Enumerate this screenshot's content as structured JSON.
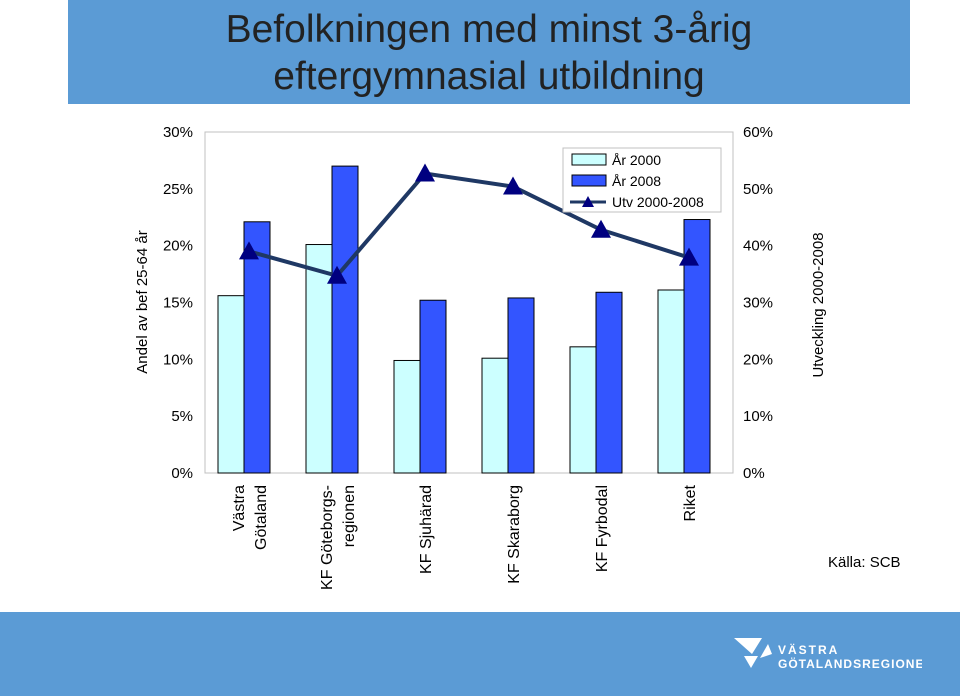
{
  "title_line1": "Befolkningen med minst 3-årig",
  "title_line2": "eftergymnasial utbildning",
  "source": "Källa: SCB",
  "logo": {
    "line1": "VÄSTRA",
    "line2": "GÖTALANDSREGIONEN"
  },
  "colors": {
    "banner": "#5b9bd5",
    "series_2000": "#ccffff",
    "series_2008": "#3355ff",
    "line": "#1f3864",
    "marker": "#000080"
  },
  "chart_data": {
    "type": "bar",
    "title": "Befolkningen med minst 3-årig eftergymnasial utbildning",
    "ylabel": "Andel av bef 25-64 år",
    "y2label": "Utveckling 2000-2008",
    "ylim": [
      0,
      30
    ],
    "y2lim": [
      0,
      60
    ],
    "y_ticks": [
      "0%",
      "5%",
      "10%",
      "15%",
      "20%",
      "25%",
      "30%"
    ],
    "y2_ticks": [
      "0%",
      "10%",
      "20%",
      "30%",
      "40%",
      "50%",
      "60%"
    ],
    "categories": [
      [
        "Västra",
        "Götaland"
      ],
      [
        "KF Göteborgs-",
        "regionen"
      ],
      [
        "KF Sjuhärad"
      ],
      [
        "KF Skaraborg"
      ],
      [
        "KF Fyrbodal"
      ],
      [
        "Riket"
      ]
    ],
    "legend_position": "top-right",
    "series": [
      {
        "name": "År 2000",
        "kind": "bar",
        "axis": "left",
        "values": [
          15.6,
          20.1,
          9.9,
          10.1,
          11.1,
          16.1
        ]
      },
      {
        "name": "År 2008",
        "kind": "bar",
        "axis": "right",
        "values": [
          22.1,
          27.0,
          15.2,
          15.4,
          15.9,
          22.3
        ]
      },
      {
        "name": "Utv 2000-2008",
        "kind": "line",
        "axis": "right",
        "values": [
          39.0,
          34.7,
          52.7,
          50.4,
          42.8,
          37.9
        ]
      }
    ]
  }
}
